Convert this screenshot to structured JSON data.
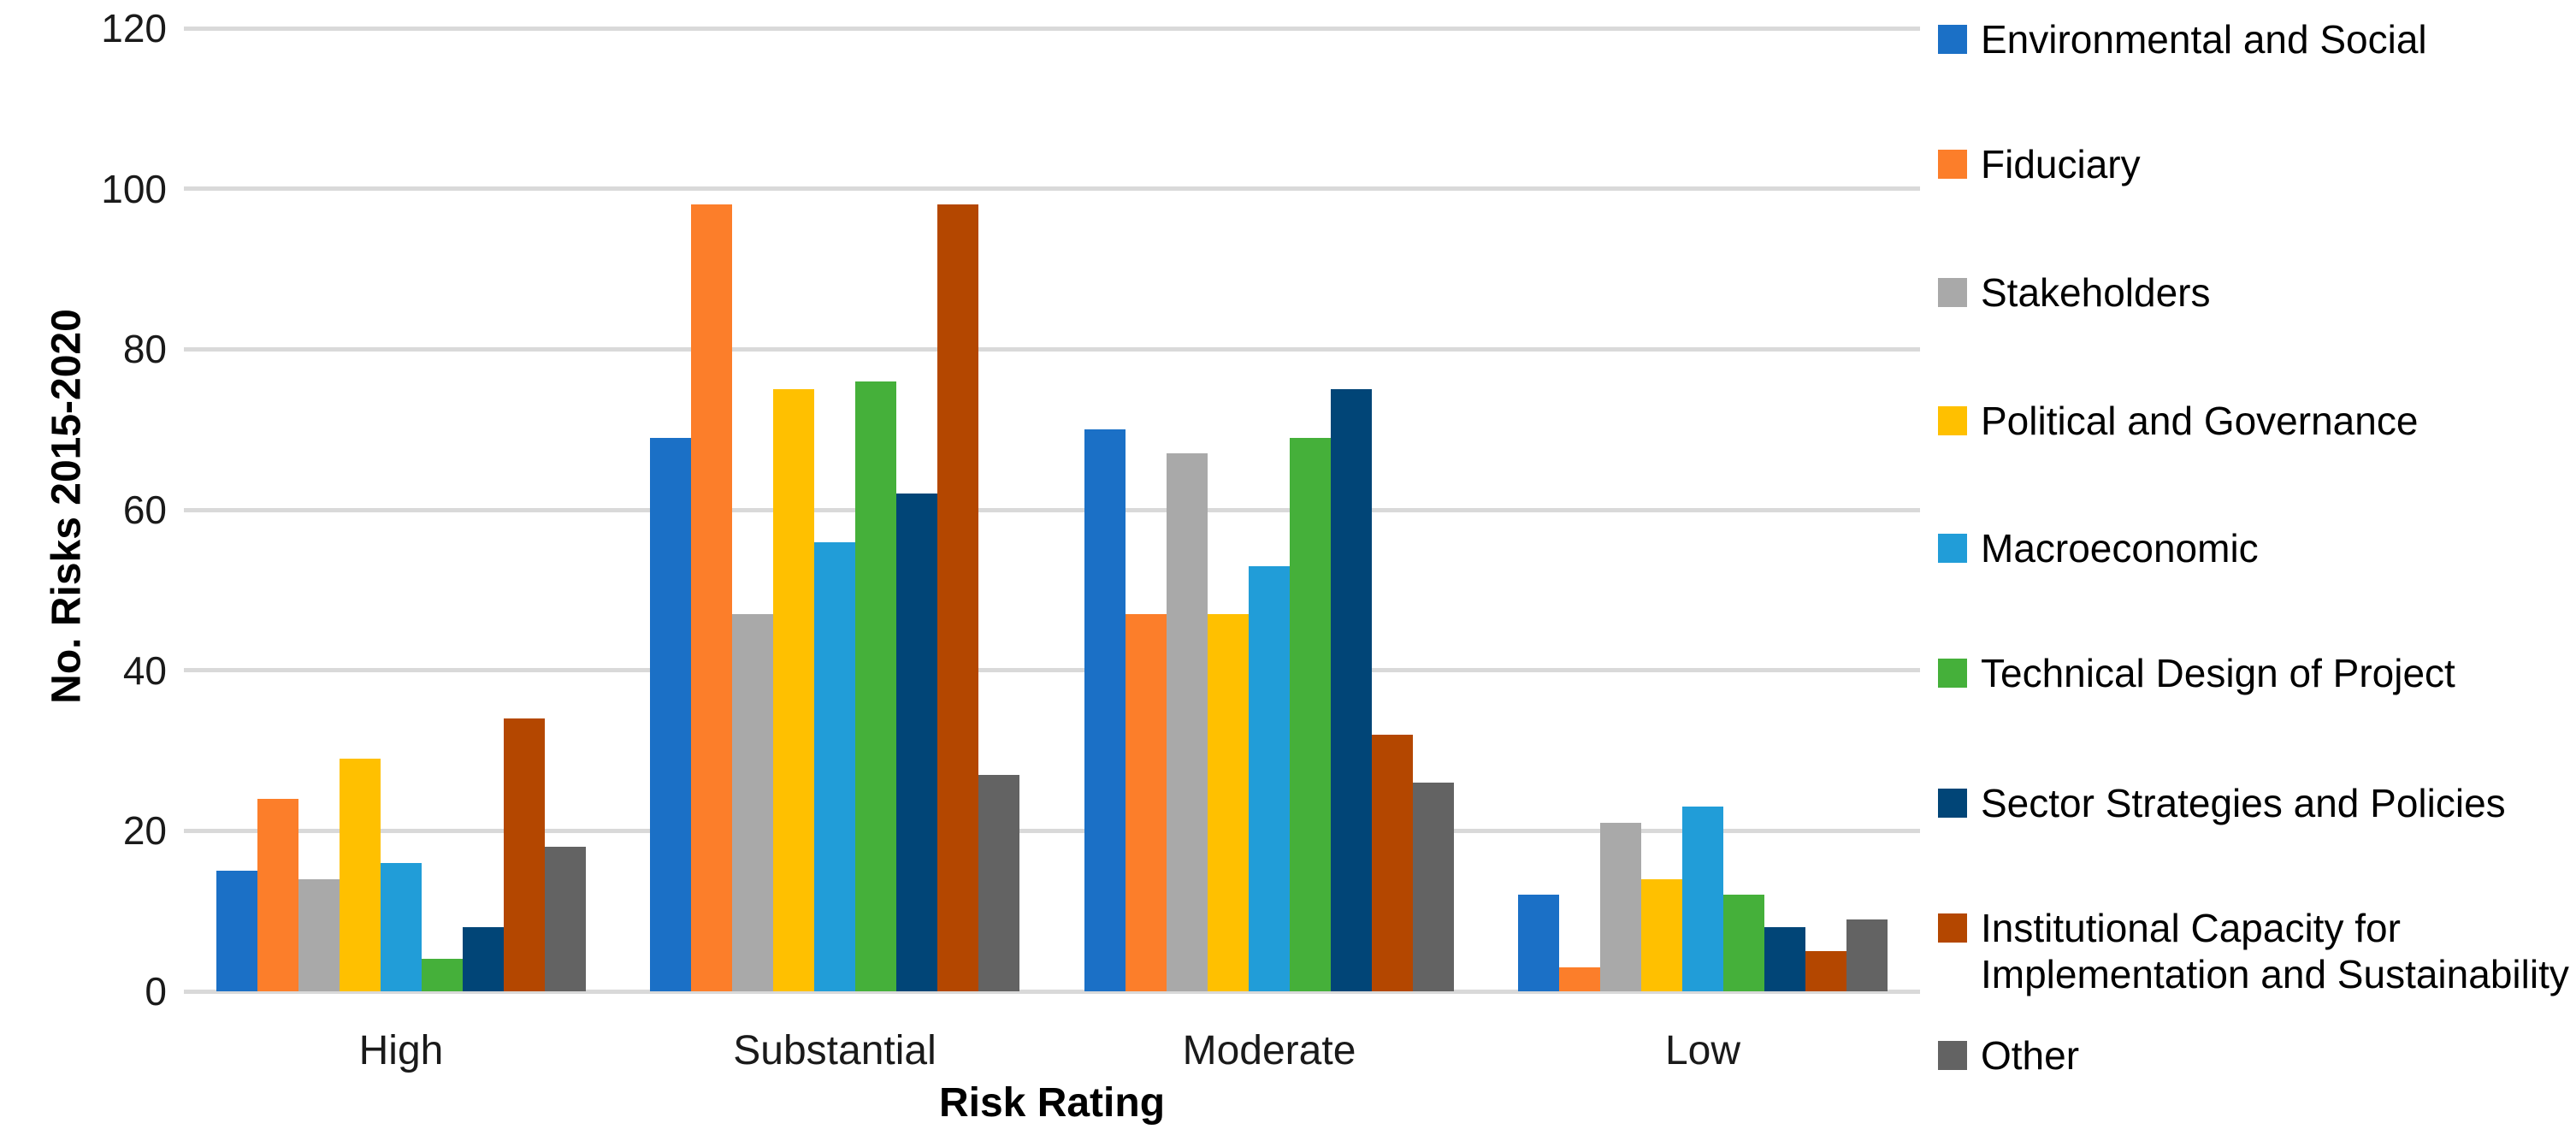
{
  "chart_data": {
    "type": "bar",
    "title": "",
    "xlabel": "Risk Rating",
    "ylabel": "No. Risks 2015-2020",
    "categories": [
      "High",
      "Substantial",
      "Moderate",
      "Low"
    ],
    "series": [
      {
        "name": "Environmental and Social",
        "color": "#1B70C6",
        "values": [
          15,
          69,
          70,
          12
        ]
      },
      {
        "name": "Fiduciary",
        "color": "#FC7E2A",
        "values": [
          24,
          98,
          47,
          3
        ]
      },
      {
        "name": "Stakeholders",
        "color": "#A9A9A9",
        "values": [
          14,
          47,
          67,
          21
        ]
      },
      {
        "name": "Political and Governance",
        "color": "#FFC000",
        "values": [
          29,
          75,
          47,
          14
        ]
      },
      {
        "name": "Macroeconomic",
        "color": "#219DD8",
        "values": [
          16,
          56,
          53,
          23
        ]
      },
      {
        "name": "Technical Design of Project",
        "color": "#45B03A",
        "values": [
          4,
          76,
          69,
          12
        ]
      },
      {
        "name": "Sector Strategies and Policies",
        "color": "#014577",
        "values": [
          8,
          62,
          75,
          8
        ]
      },
      {
        "name": "Institutional Capacity for\nImplementation and Sustainability",
        "color": "#B44700",
        "values": [
          34,
          98,
          32,
          5
        ]
      },
      {
        "name": "Other",
        "color": "#636363",
        "values": [
          18,
          27,
          26,
          9
        ]
      }
    ],
    "ylim": [
      0,
      120
    ],
    "yticks": [
      0,
      20,
      40,
      60,
      80,
      100,
      120
    ],
    "grid": true,
    "grid_color": "#D9D9D9",
    "legend_position": "right"
  }
}
